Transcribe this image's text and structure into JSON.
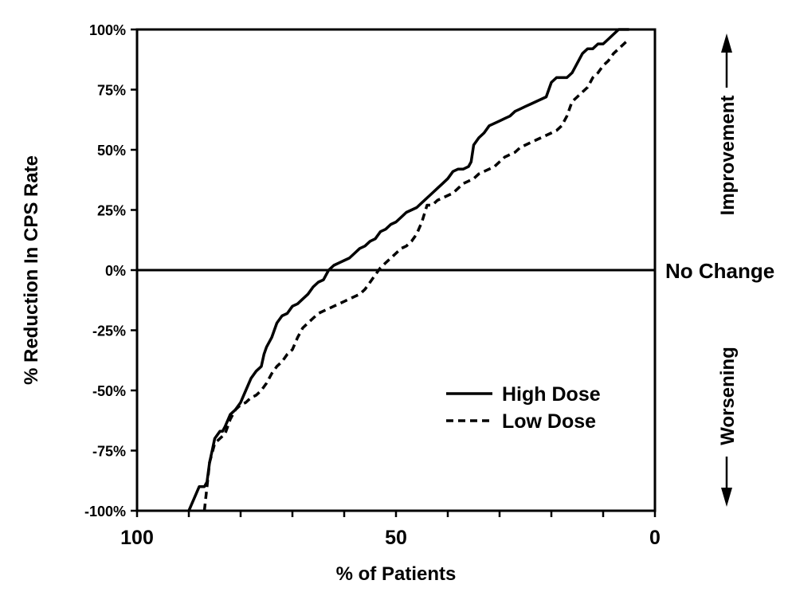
{
  "chart_data": {
    "type": "line",
    "title": "",
    "xlabel": "% of Patients",
    "ylabel": "% Reduction In CPS Rate",
    "xlim": [
      100,
      0
    ],
    "ylim": [
      -100,
      100
    ],
    "x_ticks": [
      100,
      50,
      0
    ],
    "x_tick_labels": [
      "100",
      "50",
      "0"
    ],
    "y_ticks": [
      100,
      75,
      50,
      25,
      0,
      -25,
      -50,
      -75,
      -100
    ],
    "y_tick_labels": [
      "100%",
      "75%",
      "50%",
      "25%",
      "0%",
      "-25%",
      "-50%",
      "-75%",
      "-100%"
    ],
    "grid": false,
    "legend_position": "lower-right",
    "reference_line": {
      "y": 0,
      "label": "No Change"
    },
    "annotations": {
      "up": "Improvement",
      "down": "Worsening"
    },
    "series": [
      {
        "name": "High Dose",
        "style": "solid",
        "color": "#000000",
        "x": [
          90,
          89,
          88,
          87,
          86.5,
          86,
          85.5,
          85,
          84,
          83.5,
          83,
          82,
          81,
          80,
          79,
          78,
          77,
          76,
          75.5,
          75,
          74,
          73,
          72,
          71,
          70,
          69,
          68,
          67,
          66,
          65,
          64,
          63,
          62,
          61,
          60,
          59,
          58,
          57,
          56,
          55,
          54,
          53,
          52,
          51,
          50,
          49,
          48,
          47,
          46,
          45,
          44,
          43,
          42,
          41,
          40,
          39,
          38,
          37,
          36,
          35.5,
          35,
          34,
          33,
          32,
          31,
          30,
          29,
          28,
          27,
          26,
          25,
          24,
          23,
          22,
          21,
          20,
          19,
          18,
          17,
          16,
          15,
          14,
          13,
          12,
          11,
          10,
          9,
          8,
          7,
          6,
          5
        ],
        "y": [
          -100,
          -95,
          -90,
          -90,
          -88,
          -80,
          -75,
          -70,
          -67,
          -67,
          -65,
          -60,
          -58,
          -55,
          -50,
          -45,
          -42,
          -40,
          -35,
          -32,
          -28,
          -22,
          -19,
          -18,
          -15,
          -14,
          -12,
          -10,
          -7,
          -5,
          -4,
          0,
          2,
          3,
          4,
          5,
          7,
          9,
          10,
          12,
          13,
          16,
          17,
          19,
          20,
          22,
          24,
          25,
          26,
          28,
          30,
          32,
          34,
          36,
          38,
          41,
          42,
          42,
          43,
          45,
          52,
          55,
          57,
          60,
          61,
          62,
          63,
          64,
          66,
          67,
          68,
          69,
          70,
          71,
          72,
          78,
          80,
          80,
          80,
          82,
          86,
          90,
          92,
          92,
          94,
          94,
          96,
          98,
          100,
          100,
          100
        ]
      },
      {
        "name": "Low Dose",
        "style": "dashed",
        "color": "#000000",
        "x": [
          87,
          86.5,
          86,
          85,
          84,
          83,
          82,
          81,
          80,
          79,
          78,
          77,
          76,
          75,
          74,
          73,
          72,
          71,
          70,
          69,
          68,
          67,
          66,
          65,
          64,
          63,
          62,
          61,
          60,
          59,
          58,
          57,
          56,
          55,
          54,
          53,
          52,
          51,
          50,
          49,
          48,
          47,
          46,
          45,
          44,
          43,
          42,
          41,
          40,
          39,
          38,
          37,
          36,
          35,
          34,
          33,
          32,
          31,
          30,
          29,
          28,
          27,
          26,
          25,
          24,
          23,
          22,
          21,
          20,
          19,
          18,
          17,
          16,
          15,
          14,
          13,
          12,
          11,
          10,
          9,
          8,
          7,
          6,
          5
        ],
        "y": [
          -100,
          -90,
          -80,
          -72,
          -70,
          -68,
          -62,
          -58,
          -56,
          -55,
          -53,
          -52,
          -50,
          -47,
          -43,
          -40,
          -38,
          -35,
          -33,
          -28,
          -24,
          -22,
          -20,
          -18,
          -17,
          -16,
          -15,
          -14,
          -13,
          -12,
          -11,
          -10,
          -8,
          -5,
          -2,
          1,
          3,
          5,
          7,
          9,
          10,
          12,
          15,
          20,
          27,
          27,
          29,
          30,
          31,
          32,
          34,
          36,
          37,
          38,
          40,
          41,
          42,
          43,
          45,
          47,
          48,
          49,
          51,
          52,
          53,
          54,
          55,
          56,
          57,
          58,
          60,
          64,
          70,
          72,
          74,
          76,
          80,
          82,
          85,
          87,
          90,
          92,
          94,
          96
        ]
      }
    ]
  }
}
